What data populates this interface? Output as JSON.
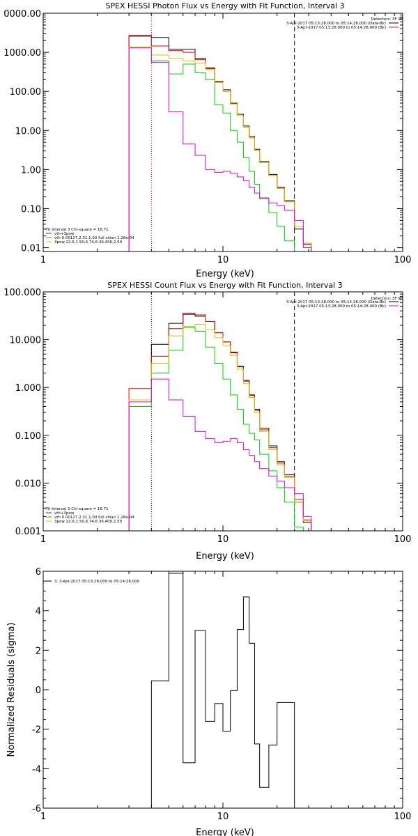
{
  "colors": {
    "black": "#000000",
    "red": "#e00000",
    "green": "#00d000",
    "yellow": "#e0c000",
    "magenta": "#e000e0",
    "purple": "#8000c0"
  },
  "chart_data": [
    {
      "type": "line",
      "scale": "log-log",
      "title": "SPEX HESSI Photon Flux vs Energy with Fit Function, Interval 3",
      "xlabel": "Energy (keV)",
      "ylabel": "",
      "xlim": [
        1,
        100
      ],
      "ylim": [
        0.008,
        10000
      ],
      "x_ticks": [
        "1",
        "10",
        "100"
      ],
      "y_ticks": [
        "0.01",
        "0.10",
        "1.00",
        "10.00",
        "100.00",
        "1000.00",
        "0000.00"
      ],
      "y_tick_values": [
        0.01,
        0.1,
        1,
        10,
        100,
        1000,
        10000
      ],
      "detectors": "Detectors: 3F 9F",
      "header_lines": [
        {
          "text": "3-Apr-2017 05:13:28.000 to 05:14:28.000 (Data-Bk)",
          "color": "#000000"
        },
        {
          "text": "3-Apr-2017 05:13:28.000 to 05:14:28.000 (Bk)",
          "color": "#e000e0"
        }
      ],
      "legend": {
        "header": "Fit Interval 3   Chi-square = 18.71",
        "entries": [
          {
            "text": "vth+3pow",
            "color": "#e00000"
          },
          {
            "text": "vth 0.00127,2.31,1.00  full chian 1.26e-04",
            "color": "#00d000"
          },
          {
            "text": "3pow 22.6,1.50,6.74,6.36,400,2.50",
            "color": "#e0c000"
          }
        ]
      },
      "markers": [
        {
          "x": 4.0,
          "style": "dotted",
          "color": "#8000c0"
        },
        {
          "x": 25.0,
          "style": "dashed",
          "color": "#000000"
        }
      ],
      "bin_edges": [
        3,
        4,
        5,
        6,
        7,
        8,
        9,
        10,
        11,
        12,
        13,
        14,
        15,
        16,
        18,
        20,
        22,
        25,
        28,
        31
      ],
      "series": [
        {
          "name": "Data-Bk",
          "color": "#000000",
          "values": [
            2600,
            2400,
            1200,
            1200,
            700,
            400,
            180,
            110,
            50,
            26,
            13,
            7,
            3.3,
            1.6,
            0.75,
            0.35,
            0.16,
            0.03,
            0.012
          ]
        },
        {
          "name": "vth+3pow",
          "color": "#e00000",
          "values": [
            2700,
            1450,
            1100,
            1000,
            650,
            380,
            170,
            100,
            48,
            24,
            12,
            6.5,
            3.1,
            1.5,
            0.7,
            0.33,
            0.15,
            0.035,
            0.013
          ]
        },
        {
          "name": "vth",
          "color": "#00d000",
          "values": [
            1350,
            600,
            280,
            500,
            300,
            200,
            45,
            28,
            10,
            5,
            2,
            0.9,
            0.42,
            0.19,
            0.08,
            0.035,
            0.015,
            0.005,
            0.002
          ]
        },
        {
          "name": "3pow",
          "color": "#e0c000",
          "values": [
            1350,
            850,
            700,
            600,
            520,
            360,
            170,
            100,
            48,
            24,
            12,
            6.5,
            3.1,
            1.5,
            0.7,
            0.33,
            0.15,
            0.035,
            0.013
          ]
        },
        {
          "name": "Bk",
          "color": "#e000e0",
          "values": [
            1300,
            550,
            30,
            4.5,
            2.3,
            1.0,
            0.85,
            0.9,
            0.8,
            0.65,
            0.52,
            0.35,
            0.25,
            0.18,
            0.14,
            0.12,
            0.09,
            0.05,
            0.01
          ]
        }
      ]
    },
    {
      "type": "line",
      "scale": "log-log",
      "title": "SPEX HESSI Count Flux vs Energy with Fit Function, Interval 3",
      "xlabel": "Energy (keV)",
      "ylabel": "",
      "xlim": [
        1,
        100
      ],
      "ylim": [
        0.001,
        100
      ],
      "x_ticks": [
        "1",
        "10",
        "100"
      ],
      "y_ticks": [
        "0.001",
        "0.010",
        "0.100",
        "1.000",
        "10.000",
        "100.000"
      ],
      "y_tick_values": [
        0.001,
        0.01,
        0.1,
        1,
        10,
        100
      ],
      "detectors": "Detectors: 3F 9F",
      "header_lines": [
        {
          "text": "3-Apr-2017 05:13:28.000 to 05:14:28.000 (Data-Bk)",
          "color": "#000000"
        },
        {
          "text": "3-Apr-2017 05:13:28.000 to 05:14:28.000 (Bk)",
          "color": "#e000e0"
        }
      ],
      "legend": {
        "header": "Fit Interval 3   Chi-square = 18.71",
        "entries": [
          {
            "text": "vth+3pow",
            "color": "#e00000"
          },
          {
            "text": "vth 0.00127,2.31,1.00  full chian 1.26e-04",
            "color": "#00d000"
          },
          {
            "text": "3pow 22.6,1.50,6.74,6.36,400,2.50",
            "color": "#e0c000"
          }
        ]
      },
      "markers": [
        {
          "x": 4.0,
          "style": "dotted",
          "color": "#000000"
        },
        {
          "x": 25.0,
          "style": "dashed",
          "color": "#000000"
        }
      ],
      "bin_edges": [
        3,
        4,
        5,
        6,
        7,
        8,
        9,
        10,
        11,
        12,
        13,
        14,
        15,
        16,
        18,
        20,
        22,
        25,
        28,
        31
      ],
      "series": [
        {
          "name": "Data-Bk",
          "color": "#000000",
          "values": [
            0.55,
            8,
            22,
            34,
            31,
            24,
            14,
            9,
            5.5,
            2.8,
            1.4,
            0.7,
            0.35,
            0.14,
            0.06,
            0.028,
            0.015,
            0.004,
            0.0015
          ]
        },
        {
          "name": "vth+3pow",
          "color": "#e00000",
          "values": [
            0.95,
            4.5,
            17,
            36,
            33,
            24,
            14,
            9,
            5.3,
            2.7,
            1.35,
            0.68,
            0.33,
            0.13,
            0.055,
            0.026,
            0.014,
            0.0045,
            0.0017
          ]
        },
        {
          "name": "vth",
          "color": "#00d000",
          "values": [
            0.4,
            2.0,
            6,
            18,
            15,
            7,
            3.2,
            1.5,
            0.7,
            0.35,
            0.17,
            0.11,
            0.08,
            0.04,
            0.018,
            0.008,
            0.004,
            0.0012,
            0.0005
          ]
        },
        {
          "name": "3pow",
          "color": "#e0c000",
          "values": [
            0.55,
            3.2,
            12,
            19,
            21,
            16,
            11,
            7.5,
            4.7,
            2.4,
            1.2,
            0.62,
            0.3,
            0.12,
            0.05,
            0.024,
            0.013,
            0.004,
            0.0016
          ]
        },
        {
          "name": "Bk",
          "color": "#e000e0",
          "values": [
            0.5,
            1.5,
            0.55,
            0.25,
            0.12,
            0.085,
            0.07,
            0.075,
            0.085,
            0.07,
            0.05,
            0.038,
            0.028,
            0.02,
            0.014,
            0.011,
            0.008,
            0.006,
            0.002
          ]
        }
      ]
    },
    {
      "type": "line",
      "scale": "log-x",
      "title": "",
      "xlabel": "Energy (keV)",
      "ylabel": "Normalized Residuals (sigma)",
      "xlim": [
        1,
        100
      ],
      "ylim": [
        -6,
        6
      ],
      "x_ticks": [
        "1",
        "10",
        "100"
      ],
      "y_ticks": [
        "-6",
        "-4",
        "-2",
        "0",
        "2",
        "4",
        "6"
      ],
      "y_tick_values": [
        -6,
        -4,
        -2,
        0,
        2,
        4,
        6
      ],
      "legend": {
        "entries": [
          {
            "text": "3.  3-Apr-2017 05:13:28.000 to 05:14:28.000",
            "color": "#000000"
          }
        ]
      },
      "bin_edges": [
        4,
        5,
        6,
        7,
        8,
        9,
        10,
        11,
        12,
        13,
        14,
        15,
        16,
        18,
        20,
        22,
        25
      ],
      "series": [
        {
          "name": "residuals",
          "color": "#000000",
          "values": [
            0.45,
            5.9,
            -3.7,
            3.0,
            -1.6,
            -0.7,
            -2.1,
            -0.05,
            3.05,
            4.7,
            2.35,
            -2.75,
            -4.95,
            -2.8,
            -0.65,
            -0.65
          ]
        }
      ]
    }
  ]
}
